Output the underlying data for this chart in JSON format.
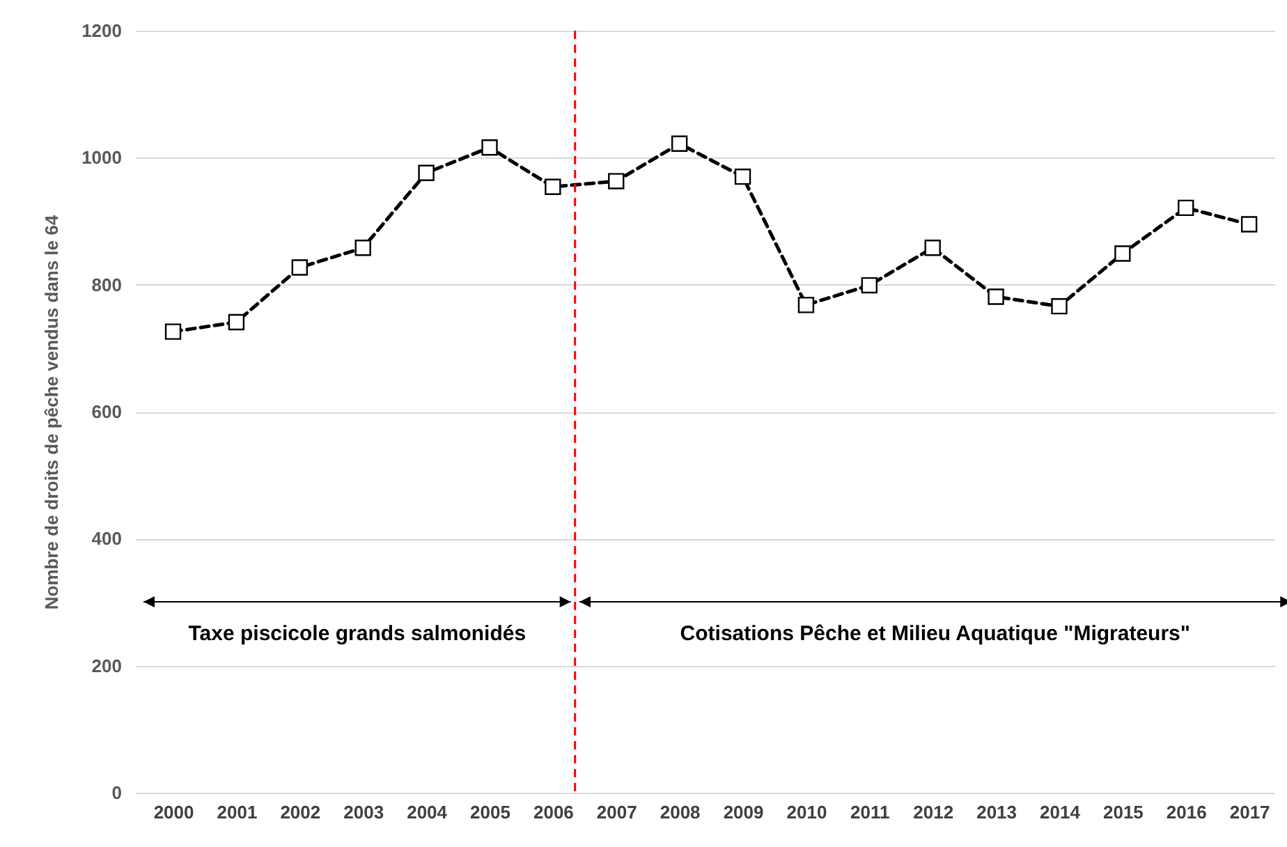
{
  "chart_data": {
    "type": "line",
    "ylabel": "Nombre de droits de pêche vendus dans le 64",
    "x": [
      2000,
      2001,
      2002,
      2003,
      2004,
      2005,
      2006,
      2007,
      2008,
      2009,
      2010,
      2011,
      2012,
      2013,
      2014,
      2015,
      2016,
      2017
    ],
    "series": [
      {
        "color": "#000000",
        "values": [
          726,
          741,
          827,
          858,
          976,
          1016,
          954,
          963,
          1022,
          970,
          768,
          799,
          858,
          781,
          766,
          849,
          921,
          895
        ]
      }
    ],
    "xlim": [
      1999.4,
      2017.4
    ],
    "xticks": [
      2000,
      2001,
      2002,
      2003,
      2004,
      2005,
      2006,
      2007,
      2008,
      2009,
      2010,
      2011,
      2012,
      2013,
      2014,
      2015,
      2016,
      2017
    ],
    "ylim": [
      0,
      1200
    ],
    "yticks": [
      0,
      200,
      400,
      600,
      800,
      1000,
      1200
    ],
    "grid": "y",
    "marker": "square",
    "line_style": "dashed",
    "ref_lines": [
      {
        "axis": "x",
        "value": 2006.35,
        "color": "#ff0000",
        "line_style": "dashed"
      }
    ],
    "annotations": [
      "Taxe piscicole grands salmonidés",
      "Cotisations Pêche et Milieu Aquatique \"Migrateurs\""
    ]
  }
}
